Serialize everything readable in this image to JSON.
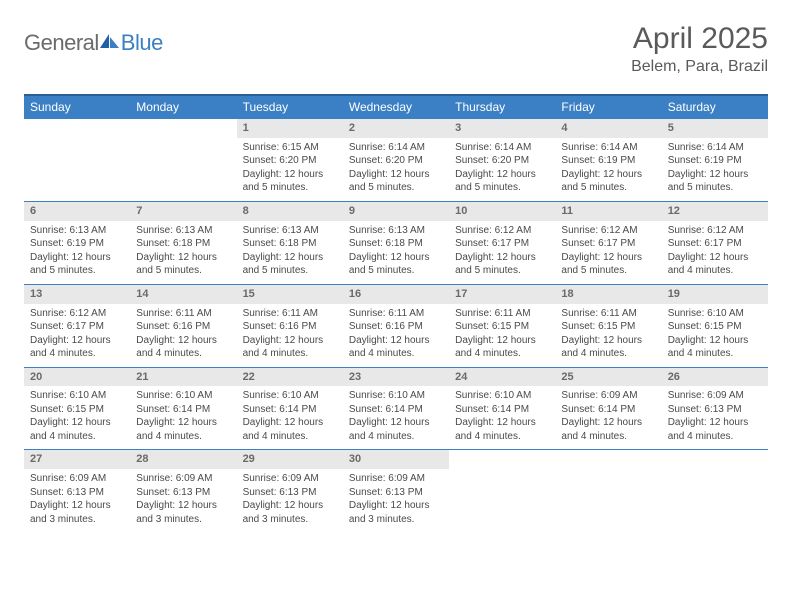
{
  "logo": {
    "part1": "General",
    "part2": "Blue"
  },
  "title": "April 2025",
  "location": "Belem, Para, Brazil",
  "colors": {
    "header_bg": "#3b7fc4",
    "header_border": "#2a5f96",
    "daynum_bg": "#e8e8e8",
    "row_divider": "#3b7fc4",
    "text": "#4a4a4a",
    "title_color": "#5a5a5a"
  },
  "typography": {
    "title_fontsize": 30,
    "location_fontsize": 16,
    "dayheader_fontsize": 12,
    "daynum_fontsize": 11,
    "cell_fontsize": 10
  },
  "day_headers": [
    "Sunday",
    "Monday",
    "Tuesday",
    "Wednesday",
    "Thursday",
    "Friday",
    "Saturday"
  ],
  "weeks": [
    {
      "nums": [
        "",
        "",
        "1",
        "2",
        "3",
        "4",
        "5"
      ],
      "cells": [
        null,
        null,
        {
          "sunrise": "Sunrise: 6:15 AM",
          "sunset": "Sunset: 6:20 PM",
          "day1": "Daylight: 12 hours",
          "day2": "and 5 minutes."
        },
        {
          "sunrise": "Sunrise: 6:14 AM",
          "sunset": "Sunset: 6:20 PM",
          "day1": "Daylight: 12 hours",
          "day2": "and 5 minutes."
        },
        {
          "sunrise": "Sunrise: 6:14 AM",
          "sunset": "Sunset: 6:20 PM",
          "day1": "Daylight: 12 hours",
          "day2": "and 5 minutes."
        },
        {
          "sunrise": "Sunrise: 6:14 AM",
          "sunset": "Sunset: 6:19 PM",
          "day1": "Daylight: 12 hours",
          "day2": "and 5 minutes."
        },
        {
          "sunrise": "Sunrise: 6:14 AM",
          "sunset": "Sunset: 6:19 PM",
          "day1": "Daylight: 12 hours",
          "day2": "and 5 minutes."
        }
      ]
    },
    {
      "nums": [
        "6",
        "7",
        "8",
        "9",
        "10",
        "11",
        "12"
      ],
      "cells": [
        {
          "sunrise": "Sunrise: 6:13 AM",
          "sunset": "Sunset: 6:19 PM",
          "day1": "Daylight: 12 hours",
          "day2": "and 5 minutes."
        },
        {
          "sunrise": "Sunrise: 6:13 AM",
          "sunset": "Sunset: 6:18 PM",
          "day1": "Daylight: 12 hours",
          "day2": "and 5 minutes."
        },
        {
          "sunrise": "Sunrise: 6:13 AM",
          "sunset": "Sunset: 6:18 PM",
          "day1": "Daylight: 12 hours",
          "day2": "and 5 minutes."
        },
        {
          "sunrise": "Sunrise: 6:13 AM",
          "sunset": "Sunset: 6:18 PM",
          "day1": "Daylight: 12 hours",
          "day2": "and 5 minutes."
        },
        {
          "sunrise": "Sunrise: 6:12 AM",
          "sunset": "Sunset: 6:17 PM",
          "day1": "Daylight: 12 hours",
          "day2": "and 5 minutes."
        },
        {
          "sunrise": "Sunrise: 6:12 AM",
          "sunset": "Sunset: 6:17 PM",
          "day1": "Daylight: 12 hours",
          "day2": "and 5 minutes."
        },
        {
          "sunrise": "Sunrise: 6:12 AM",
          "sunset": "Sunset: 6:17 PM",
          "day1": "Daylight: 12 hours",
          "day2": "and 4 minutes."
        }
      ]
    },
    {
      "nums": [
        "13",
        "14",
        "15",
        "16",
        "17",
        "18",
        "19"
      ],
      "cells": [
        {
          "sunrise": "Sunrise: 6:12 AM",
          "sunset": "Sunset: 6:17 PM",
          "day1": "Daylight: 12 hours",
          "day2": "and 4 minutes."
        },
        {
          "sunrise": "Sunrise: 6:11 AM",
          "sunset": "Sunset: 6:16 PM",
          "day1": "Daylight: 12 hours",
          "day2": "and 4 minutes."
        },
        {
          "sunrise": "Sunrise: 6:11 AM",
          "sunset": "Sunset: 6:16 PM",
          "day1": "Daylight: 12 hours",
          "day2": "and 4 minutes."
        },
        {
          "sunrise": "Sunrise: 6:11 AM",
          "sunset": "Sunset: 6:16 PM",
          "day1": "Daylight: 12 hours",
          "day2": "and 4 minutes."
        },
        {
          "sunrise": "Sunrise: 6:11 AM",
          "sunset": "Sunset: 6:15 PM",
          "day1": "Daylight: 12 hours",
          "day2": "and 4 minutes."
        },
        {
          "sunrise": "Sunrise: 6:11 AM",
          "sunset": "Sunset: 6:15 PM",
          "day1": "Daylight: 12 hours",
          "day2": "and 4 minutes."
        },
        {
          "sunrise": "Sunrise: 6:10 AM",
          "sunset": "Sunset: 6:15 PM",
          "day1": "Daylight: 12 hours",
          "day2": "and 4 minutes."
        }
      ]
    },
    {
      "nums": [
        "20",
        "21",
        "22",
        "23",
        "24",
        "25",
        "26"
      ],
      "cells": [
        {
          "sunrise": "Sunrise: 6:10 AM",
          "sunset": "Sunset: 6:15 PM",
          "day1": "Daylight: 12 hours",
          "day2": "and 4 minutes."
        },
        {
          "sunrise": "Sunrise: 6:10 AM",
          "sunset": "Sunset: 6:14 PM",
          "day1": "Daylight: 12 hours",
          "day2": "and 4 minutes."
        },
        {
          "sunrise": "Sunrise: 6:10 AM",
          "sunset": "Sunset: 6:14 PM",
          "day1": "Daylight: 12 hours",
          "day2": "and 4 minutes."
        },
        {
          "sunrise": "Sunrise: 6:10 AM",
          "sunset": "Sunset: 6:14 PM",
          "day1": "Daylight: 12 hours",
          "day2": "and 4 minutes."
        },
        {
          "sunrise": "Sunrise: 6:10 AM",
          "sunset": "Sunset: 6:14 PM",
          "day1": "Daylight: 12 hours",
          "day2": "and 4 minutes."
        },
        {
          "sunrise": "Sunrise: 6:09 AM",
          "sunset": "Sunset: 6:14 PM",
          "day1": "Daylight: 12 hours",
          "day2": "and 4 minutes."
        },
        {
          "sunrise": "Sunrise: 6:09 AM",
          "sunset": "Sunset: 6:13 PM",
          "day1": "Daylight: 12 hours",
          "day2": "and 4 minutes."
        }
      ]
    },
    {
      "nums": [
        "27",
        "28",
        "29",
        "30",
        "",
        "",
        ""
      ],
      "cells": [
        {
          "sunrise": "Sunrise: 6:09 AM",
          "sunset": "Sunset: 6:13 PM",
          "day1": "Daylight: 12 hours",
          "day2": "and 3 minutes."
        },
        {
          "sunrise": "Sunrise: 6:09 AM",
          "sunset": "Sunset: 6:13 PM",
          "day1": "Daylight: 12 hours",
          "day2": "and 3 minutes."
        },
        {
          "sunrise": "Sunrise: 6:09 AM",
          "sunset": "Sunset: 6:13 PM",
          "day1": "Daylight: 12 hours",
          "day2": "and 3 minutes."
        },
        {
          "sunrise": "Sunrise: 6:09 AM",
          "sunset": "Sunset: 6:13 PM",
          "day1": "Daylight: 12 hours",
          "day2": "and 3 minutes."
        },
        null,
        null,
        null
      ]
    }
  ]
}
